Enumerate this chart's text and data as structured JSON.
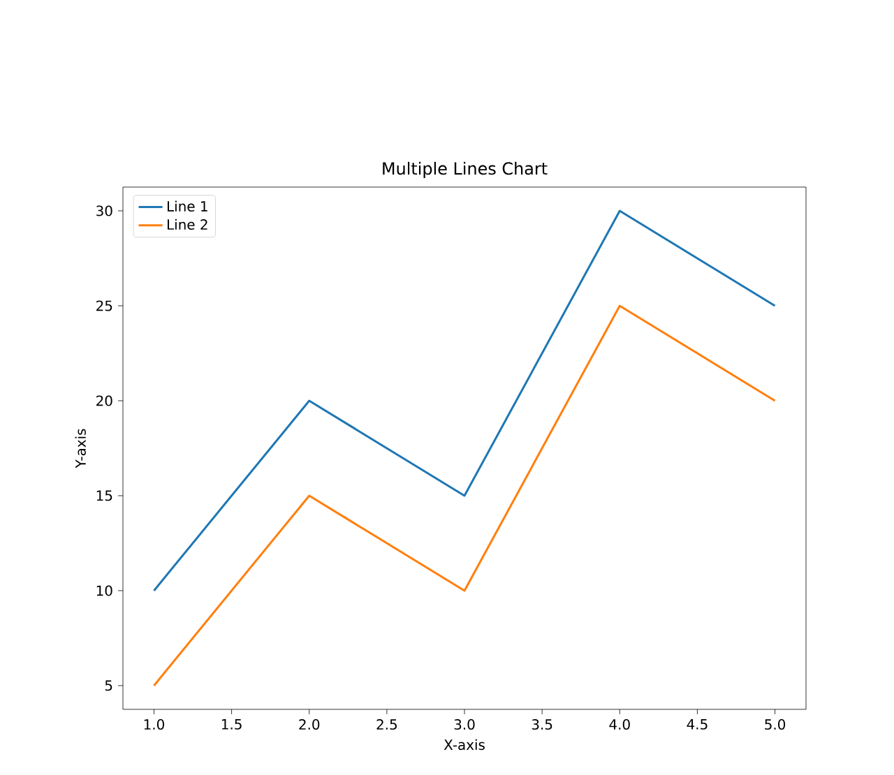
{
  "chart_data": {
    "type": "line",
    "title": "Multiple Lines Chart",
    "xlabel": "X-axis",
    "ylabel": "Y-axis",
    "x": [
      1,
      2,
      3,
      4,
      5
    ],
    "series": [
      {
        "name": "Line 1",
        "color": "#1f77b4",
        "values": [
          10,
          20,
          15,
          30,
          25
        ]
      },
      {
        "name": "Line 2",
        "color": "#ff7f0e",
        "values": [
          5,
          15,
          10,
          25,
          20
        ]
      }
    ],
    "xlim": [
      0.8,
      5.2
    ],
    "ylim": [
      3.75,
      31.25
    ],
    "xticks": [
      {
        "value": 1,
        "label": "1.0"
      },
      {
        "value": 1.5,
        "label": "1.5"
      },
      {
        "value": 2,
        "label": "2.0"
      },
      {
        "value": 2.5,
        "label": "2.5"
      },
      {
        "value": 3,
        "label": "3.0"
      },
      {
        "value": 3.5,
        "label": "3.5"
      },
      {
        "value": 4,
        "label": "4.0"
      },
      {
        "value": 4.5,
        "label": "4.5"
      },
      {
        "value": 5,
        "label": "5.0"
      }
    ],
    "yticks": [
      5,
      10,
      15,
      20,
      25,
      30
    ],
    "legend": "top left",
    "grid": false,
    "marker": "none",
    "line_style": "solid"
  }
}
